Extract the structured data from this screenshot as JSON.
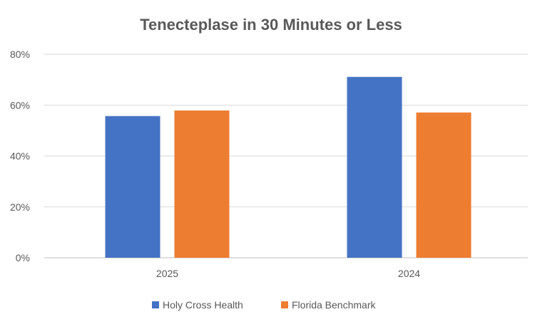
{
  "chart_data": {
    "type": "bar",
    "title": "Tenecteplase in 30 Minutes or Less",
    "categories": [
      "2025",
      "2024"
    ],
    "series": [
      {
        "name": "Holy Cross Health",
        "values": [
          55.7,
          71.1
        ],
        "color": "#4472C4"
      },
      {
        "name": "Florida Benchmark",
        "values": [
          57.9,
          57.1
        ],
        "color": "#ED7D31"
      }
    ],
    "yticks": [
      "0%",
      "20%",
      "40%",
      "60%",
      "80%"
    ],
    "ylim": [
      0,
      80
    ],
    "yunit": "%",
    "grid": true,
    "legend": "bottom",
    "xlabel": "",
    "ylabel": ""
  }
}
